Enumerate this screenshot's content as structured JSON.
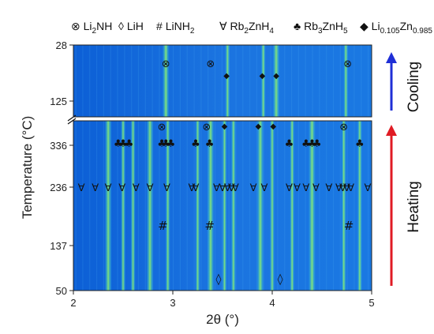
{
  "chart_data": {
    "type": "heatmap",
    "xlabel": "2θ (°)",
    "ylabel": "Temperature (°C)",
    "xlim": [
      2,
      5
    ],
    "x_ticks": [
      "2",
      "3",
      "4",
      "5"
    ],
    "cooling_panel": {
      "label": "Cooling",
      "y_ticks": [
        "28",
        "125"
      ],
      "arrow_color": "#1f2fd6"
    },
    "heating_panel": {
      "label": "Heating",
      "y_ticks": [
        "336",
        "236",
        "137",
        "50"
      ],
      "arrow_color": "#e01b24"
    },
    "legend": [
      {
        "symbol": "⊗",
        "name": "Li2NH",
        "html_sub": [
          "Li",
          "2",
          "NH"
        ]
      },
      {
        "symbol": "◊",
        "name": "LiH",
        "html_sub": [
          "LiH",
          "",
          ""
        ]
      },
      {
        "symbol": "#",
        "name": "LiNH2",
        "html_sub": [
          "LiNH",
          "2",
          ""
        ]
      },
      {
        "symbol": "∀",
        "name": "Rb2ZnH4",
        "html_sub": [
          "Rb",
          "2",
          "ZnH",
          "4"
        ]
      },
      {
        "symbol": "♣",
        "name": "Rb3ZnH5",
        "html_sub": [
          "Rb",
          "3",
          "ZnH",
          "5"
        ]
      },
      {
        "symbol": "◆",
        "name": "Li0.105Zn0.985",
        "html_sub": [
          "Li",
          "0.105",
          "Zn",
          "0.985"
        ]
      }
    ],
    "markers": {
      "Li2NH_cooling": [
        2.93,
        3.38,
        4.76
      ],
      "Li2NH_heating": [
        2.89,
        3.34,
        4.72
      ],
      "Li0.105Zn0.985_cooling": [
        3.54,
        3.9,
        4.04
      ],
      "Li0.105Zn0.985_heating": [
        3.52,
        3.86,
        4.01
      ],
      "Rb3ZnH5": [
        2.45,
        2.5,
        2.56,
        2.89,
        2.93,
        2.98,
        3.23,
        3.37,
        4.17,
        4.34,
        4.4,
        4.45,
        4.88
      ],
      "Rb2ZnH4": [
        2.08,
        2.22,
        2.35,
        2.49,
        2.63,
        2.77,
        2.94,
        3.19,
        3.23,
        3.44,
        3.5,
        3.55,
        3.59,
        3.63,
        3.81,
        3.92,
        4.17,
        4.25,
        4.34,
        4.44,
        4.57,
        4.67,
        4.71,
        4.75,
        4.79,
        4.96
      ],
      "LiNH2": [
        2.9,
        3.37,
        4.77
      ],
      "LiH": [
        3.46,
        4.08
      ]
    },
    "intense_reflections": {
      "cooling": [
        2.93,
        3.55,
        3.91,
        4.04,
        4.74
      ],
      "heating": [
        2.35,
        2.5,
        2.6,
        2.77,
        2.95,
        3.25,
        3.38,
        3.52,
        3.61,
        3.88,
        4.0,
        4.2,
        4.4,
        4.72,
        4.88
      ]
    }
  }
}
